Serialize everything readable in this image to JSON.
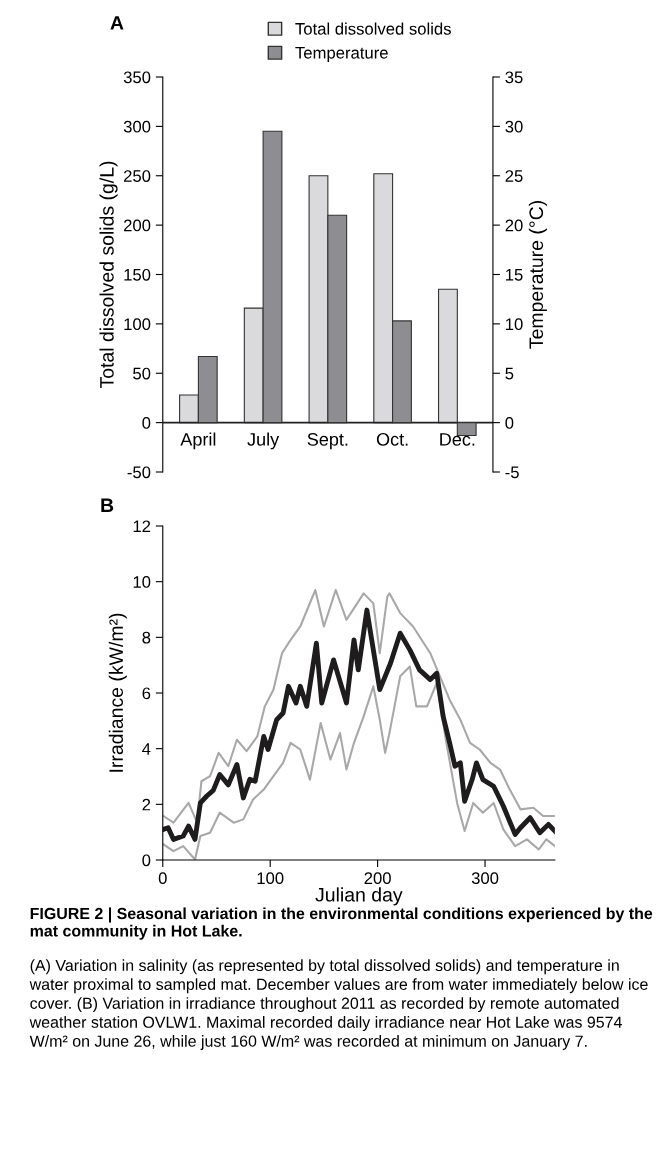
{
  "chart_data": [
    {
      "type": "bar",
      "title": "A",
      "categories": [
        "April",
        "July",
        "Sept.",
        "Oct.",
        "Dec."
      ],
      "ylabel": "Total dissolved solids (g/L)",
      "y2label": "Temperature (°C)",
      "series": [
        {
          "name": "Total dissolved solids",
          "color": "#dadadc",
          "values": [
            28,
            116,
            250,
            252,
            135
          ]
        },
        {
          "name": "Temperature",
          "color": "#8e8e92",
          "axis": "y2",
          "values": [
            6.7,
            29.5,
            21,
            10.3,
            -1.3
          ]
        }
      ],
      "ylim": [
        -50,
        350
      ],
      "yticks": [
        -50,
        0,
        50,
        100,
        150,
        200,
        250,
        300,
        350
      ],
      "y2lim": [
        -5,
        35
      ],
      "y2ticks": [
        -5,
        0,
        5,
        10,
        15,
        20,
        25,
        30,
        35
      ],
      "legend": "top right",
      "grid": false
    },
    {
      "type": "line",
      "title": "B",
      "xlabel": "Julian day",
      "ylabel": "Irradiance (kW/m²)",
      "xlim": [
        0,
        365
      ],
      "xticks": [
        0,
        100,
        200,
        300
      ],
      "ylim": [
        0,
        12
      ],
      "yticks": [
        0,
        2,
        4,
        6,
        8,
        10,
        12
      ],
      "grid": false,
      "marker": "none",
      "line_style": "solid",
      "series": [
        {
          "color": "#a8a8aa",
          "x": [
            0.6,
            10,
            24,
            32,
            36,
            44,
            52,
            61,
            69,
            78,
            88,
            95,
            103,
            111,
            119,
            128,
            142,
            150,
            161,
            171,
            181,
            187,
            196,
            202,
            209,
            211,
            221,
            233,
            249,
            258,
            267,
            277,
            286,
            295,
            305,
            314,
            323,
            333,
            345,
            354,
            365
          ],
          "values": [
            1.58,
            1.34,
            2.05,
            1.34,
            2.83,
            3.01,
            3.85,
            3.37,
            4.32,
            3.91,
            4.44,
            5.52,
            6.12,
            7.43,
            7.91,
            8.39,
            9.7,
            8.39,
            9.7,
            8.63,
            9.22,
            9.58,
            9.22,
            7.43,
            9.46,
            9.58,
            8.87,
            8.39,
            7.43,
            6.6,
            5.76,
            5.04,
            4.21,
            3.97,
            3.49,
            3.25,
            2.53,
            1.82,
            1.88,
            1.58,
            1.58
          ]
        },
        {
          "color": "#a8a8aa",
          "x": [
            0.6,
            10,
            19,
            30,
            35,
            44,
            53,
            66,
            75,
            84,
            94,
            103,
            112,
            119,
            128,
            137,
            147,
            156,
            165,
            171,
            178,
            187,
            196,
            202,
            207,
            211,
            221,
            230,
            236,
            246,
            255,
            264,
            274,
            281,
            289,
            298,
            308,
            317,
            328,
            339,
            350,
            357,
            365
          ],
          "values": [
            0.56,
            0.32,
            0.5,
            0.02,
            0.86,
            0.98,
            1.7,
            1.34,
            1.46,
            2.17,
            2.53,
            3.01,
            3.49,
            4.21,
            3.97,
            2.89,
            4.92,
            3.61,
            4.56,
            3.25,
            4.21,
            5.16,
            6.24,
            5.04,
            3.85,
            4.56,
            6.6,
            6.95,
            5.52,
            5.52,
            6.36,
            4.21,
            2.05,
            1.04,
            2.05,
            1.7,
            2.05,
            1.1,
            0.5,
            0.74,
            0.38,
            0.74,
            0.5
          ]
        },
        {
          "color": "#1f1c1d",
          "x": [
            0.6,
            5,
            10,
            19,
            24,
            30,
            35,
            41,
            47,
            53,
            61,
            69,
            75,
            81,
            86,
            94,
            98,
            106,
            112,
            117,
            124,
            128,
            134,
            143,
            148,
            159,
            171,
            178,
            182,
            190,
            202,
            212,
            221,
            230,
            239,
            249,
            255,
            261,
            267,
            272,
            277,
            281,
            288,
            292,
            298,
            308,
            317,
            328,
            333,
            342,
            351,
            359,
            365
          ],
          "values": [
            1.1,
            1.16,
            0.74,
            0.86,
            1.22,
            0.74,
            2.05,
            2.3,
            2.5,
            3.07,
            2.7,
            3.43,
            2.23,
            2.9,
            2.83,
            4.44,
            3.97,
            5.04,
            5.28,
            6.24,
            5.64,
            6.24,
            5.52,
            7.79,
            5.64,
            7.19,
            5.64,
            7.91,
            6.83,
            8.98,
            6.12,
            7.07,
            8.15,
            7.55,
            6.83,
            6.48,
            6.71,
            5.16,
            4.21,
            3.37,
            3.49,
            2.11,
            2.89,
            3.49,
            2.89,
            2.65,
            1.94,
            0.92,
            1.16,
            1.52,
            0.98,
            1.28,
            1.04
          ]
        }
      ],
      "annotations": [
        "FIGURE 2 | Seasonal variation in the environmental conditions experienced by the mat community in Hot Lake.",
        "(A) Variation in salinity (as represented by total dissolved solids) and temperature in water proximal to sampled mat. December values are from water immediately below ice cover. (B) Variation in irradiance throughout 2011 as recorded by remote automated weather station OVLW1. Maximal recorded daily irradiance near Hot Lake was 9574 W/m² on June 26, while just 160 W/m² was recorded at minimum on January 7."
      ]
    }
  ]
}
